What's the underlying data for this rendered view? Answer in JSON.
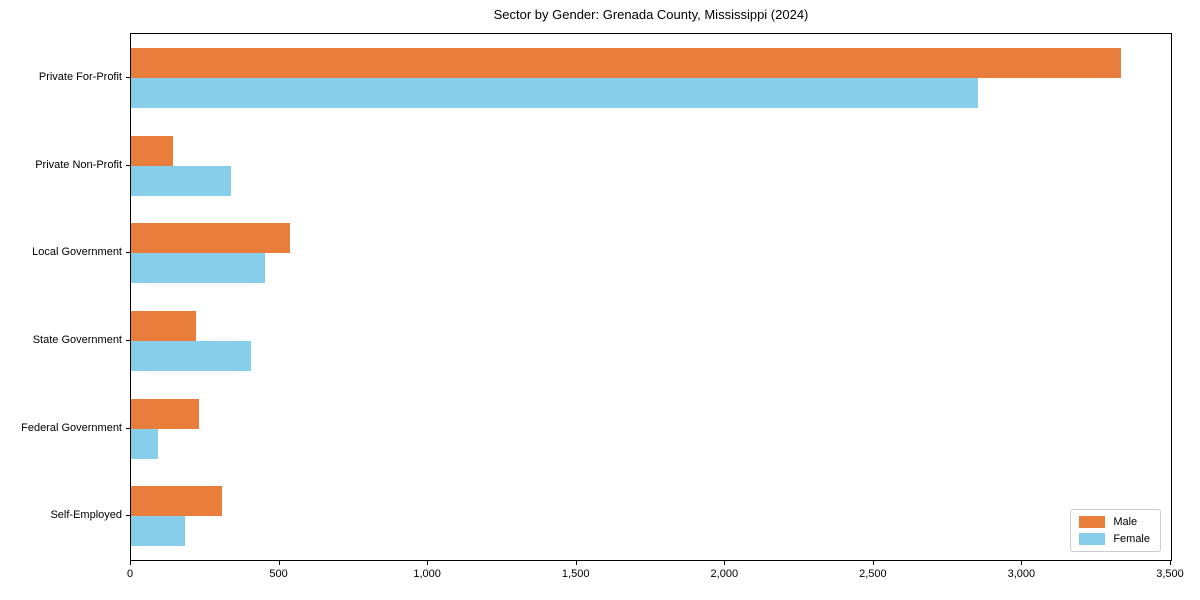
{
  "title": "Sector by Gender: Grenada County, Mississippi (2024)",
  "chart_data": {
    "type": "bar",
    "orientation": "horizontal",
    "title": "Sector by Gender: Grenada County, Mississippi (2024)",
    "xlabel": "",
    "ylabel": "",
    "categories": [
      "Private For-Profit",
      "Private Non-Profit",
      "Local Government",
      "State Government",
      "Federal Government",
      "Self-Employed"
    ],
    "series": [
      {
        "name": "Male",
        "color": "#e87d3c",
        "values": [
          3330,
          140,
          535,
          220,
          230,
          305
        ]
      },
      {
        "name": "Female",
        "color": "#87ceeb",
        "values": [
          2850,
          335,
          450,
          405,
          90,
          180
        ]
      }
    ],
    "xlim": [
      0,
      3500
    ],
    "xticks": [
      0,
      500,
      1000,
      1500,
      2000,
      2500,
      3000,
      3500
    ],
    "xtick_labels": [
      "0",
      "500",
      "1,000",
      "1,500",
      "2,000",
      "2,500",
      "3,000",
      "3,500"
    ],
    "grid": false,
    "legend_position": "lower right"
  },
  "legend": {
    "items": [
      {
        "label": "Male",
        "color": "#e87d3c"
      },
      {
        "label": "Female",
        "color": "#87ceeb"
      }
    ]
  }
}
